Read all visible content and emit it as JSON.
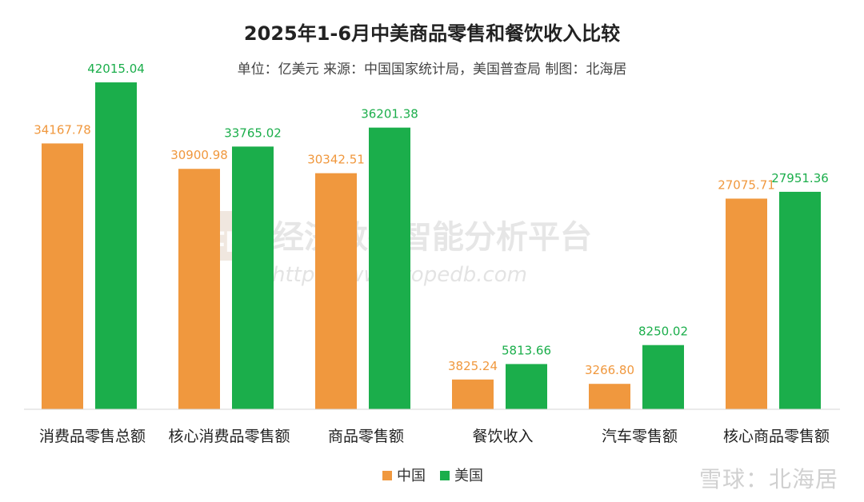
{
  "chart_data": {
    "type": "bar",
    "title": "2025年1-6月中美商品零售和餐饮收入比较",
    "subtitle": "单位：亿美元 来源：中国国家统计局，美国普查局 制图：北海居",
    "categories": [
      "消费品零售总额",
      "核心消费品零售额",
      "商品零售额",
      "餐饮收入",
      "汽车零售额",
      "核心商品零售额"
    ],
    "series": [
      {
        "name": "中国",
        "color": "#F0983E",
        "values": [
          34167.78,
          30900.98,
          30342.51,
          3825.24,
          3266.8,
          27075.71
        ],
        "labels": [
          "34167.78",
          "30900.98",
          "30342.51",
          "3825.24",
          "3266.80",
          "27075.71"
        ]
      },
      {
        "name": "美国",
        "color": "#1BAE4B",
        "values": [
          42015.04,
          33765.02,
          36201.38,
          5813.66,
          8250.02,
          27951.36
        ],
        "labels": [
          "42015.04",
          "33765.02",
          "36201.38",
          "5813.66",
          "8250.02",
          "27951.36"
        ]
      }
    ],
    "ylim": [
      0,
      45000
    ],
    "grid": false,
    "legend": "bottom-center"
  },
  "watermark": {
    "logo_text": "tp",
    "text": "经济数据智能分析平台",
    "url": "https://www.topedb.com"
  },
  "footer_watermark": "雪球：北海居"
}
